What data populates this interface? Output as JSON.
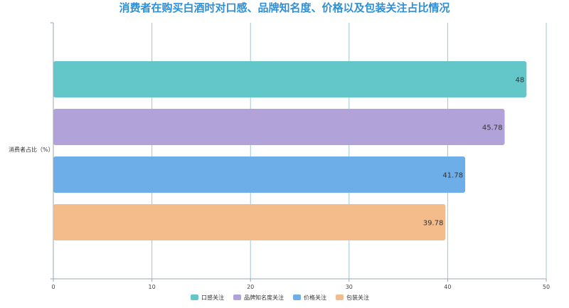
{
  "chart_data": {
    "type": "bar",
    "orientation": "horizontal",
    "title": "消费者在购买白酒时对口感、品牌知名度、价格以及包装关注占比情况",
    "ylabel": "消费者占比（%）",
    "xlabel": "",
    "xlim": [
      0,
      50
    ],
    "xticks": [
      0,
      10,
      20,
      30,
      40,
      50
    ],
    "grid": "vertical",
    "legend_position": "bottom",
    "series": [
      {
        "name": "口感关注",
        "value": 48,
        "label": "48",
        "color": "#63c6c8"
      },
      {
        "name": "品牌知名度关注",
        "value": 45.78,
        "label": "45.78",
        "color": "#b1a2d9"
      },
      {
        "name": "价格关注",
        "value": 41.78,
        "label": "41.78",
        "color": "#6daee9"
      },
      {
        "name": "包装关注",
        "value": 39.78,
        "label": "39.78",
        "color": "#f4bc8b"
      }
    ]
  },
  "colors": {
    "title": "#2e8fd6",
    "axis": "#9aa6ad",
    "grid": "#9ec8d0",
    "text": "#555555"
  }
}
